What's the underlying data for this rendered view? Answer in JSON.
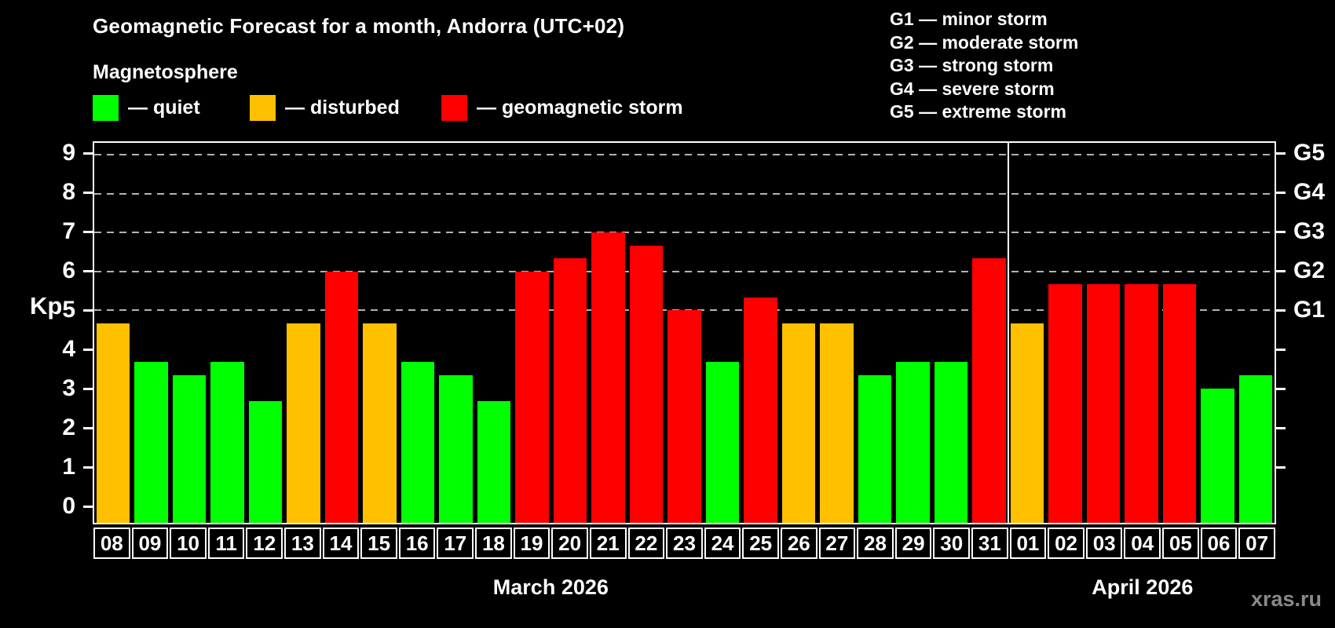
{
  "title": "Geomagnetic Forecast for a month, Andorra (UTC+02)",
  "subtitle": "Magnetosphere",
  "legend": {
    "items": [
      {
        "key": "quiet",
        "label": "— quiet",
        "color": "#00ff00"
      },
      {
        "key": "disturbed",
        "label": "— disturbed",
        "color": "#ffc000"
      },
      {
        "key": "storm",
        "label": "— geomagnetic storm",
        "color": "#ff0000"
      }
    ]
  },
  "g_legend": [
    "G1 — minor storm",
    "G2 — moderate storm",
    "G3 — strong storm",
    "G4 — severe storm",
    "G5 — extreme storm"
  ],
  "watermark": "xras.ru",
  "chart_data": {
    "type": "bar",
    "ylabel": "Kp",
    "ylim": [
      0,
      9
    ],
    "y_ticks": [
      0,
      1,
      2,
      3,
      4,
      5,
      6,
      7,
      8,
      9
    ],
    "grid": "dashed horizontal lines at storm levels only",
    "legend_position": "top",
    "g_levels": [
      {
        "kp": 5,
        "label": "G1"
      },
      {
        "kp": 6,
        "label": "G2"
      },
      {
        "kp": 7,
        "label": "G3"
      },
      {
        "kp": 8,
        "label": "G4"
      },
      {
        "kp": 9,
        "label": "G5"
      }
    ],
    "status_colors": {
      "quiet": "#00ff00",
      "disturbed": "#ffc000",
      "storm": "#ff0000"
    },
    "months": [
      {
        "label": "March 2026",
        "days": [
          {
            "day": "08",
            "kp": 4.67,
            "status": "disturbed"
          },
          {
            "day": "09",
            "kp": 3.67,
            "status": "quiet"
          },
          {
            "day": "10",
            "kp": 3.33,
            "status": "quiet"
          },
          {
            "day": "11",
            "kp": 3.67,
            "status": "quiet"
          },
          {
            "day": "12",
            "kp": 2.67,
            "status": "quiet"
          },
          {
            "day": "13",
            "kp": 4.67,
            "status": "disturbed"
          },
          {
            "day": "14",
            "kp": 6.0,
            "status": "storm"
          },
          {
            "day": "15",
            "kp": 4.67,
            "status": "disturbed"
          },
          {
            "day": "16",
            "kp": 3.67,
            "status": "quiet"
          },
          {
            "day": "17",
            "kp": 3.33,
            "status": "quiet"
          },
          {
            "day": "18",
            "kp": 2.67,
            "status": "quiet"
          },
          {
            "day": "19",
            "kp": 6.0,
            "status": "storm"
          },
          {
            "day": "20",
            "kp": 6.33,
            "status": "storm"
          },
          {
            "day": "21",
            "kp": 7.0,
            "status": "storm"
          },
          {
            "day": "22",
            "kp": 6.67,
            "status": "storm"
          },
          {
            "day": "23",
            "kp": 5.0,
            "status": "storm"
          },
          {
            "day": "24",
            "kp": 3.67,
            "status": "quiet"
          },
          {
            "day": "25",
            "kp": 5.33,
            "status": "storm"
          },
          {
            "day": "26",
            "kp": 4.67,
            "status": "disturbed"
          },
          {
            "day": "27",
            "kp": 4.67,
            "status": "disturbed"
          },
          {
            "day": "28",
            "kp": 3.33,
            "status": "quiet"
          },
          {
            "day": "29",
            "kp": 3.67,
            "status": "quiet"
          },
          {
            "day": "30",
            "kp": 3.67,
            "status": "quiet"
          },
          {
            "day": "31",
            "kp": 6.33,
            "status": "storm"
          }
        ]
      },
      {
        "label": "April 2026",
        "days": [
          {
            "day": "01",
            "kp": 4.67,
            "status": "disturbed"
          },
          {
            "day": "02",
            "kp": 5.67,
            "status": "storm"
          },
          {
            "day": "03",
            "kp": 5.67,
            "status": "storm"
          },
          {
            "day": "04",
            "kp": 5.67,
            "status": "storm"
          },
          {
            "day": "05",
            "kp": 5.67,
            "status": "storm"
          },
          {
            "day": "06",
            "kp": 3.0,
            "status": "quiet"
          },
          {
            "day": "07",
            "kp": 3.33,
            "status": "quiet"
          }
        ]
      }
    ]
  }
}
